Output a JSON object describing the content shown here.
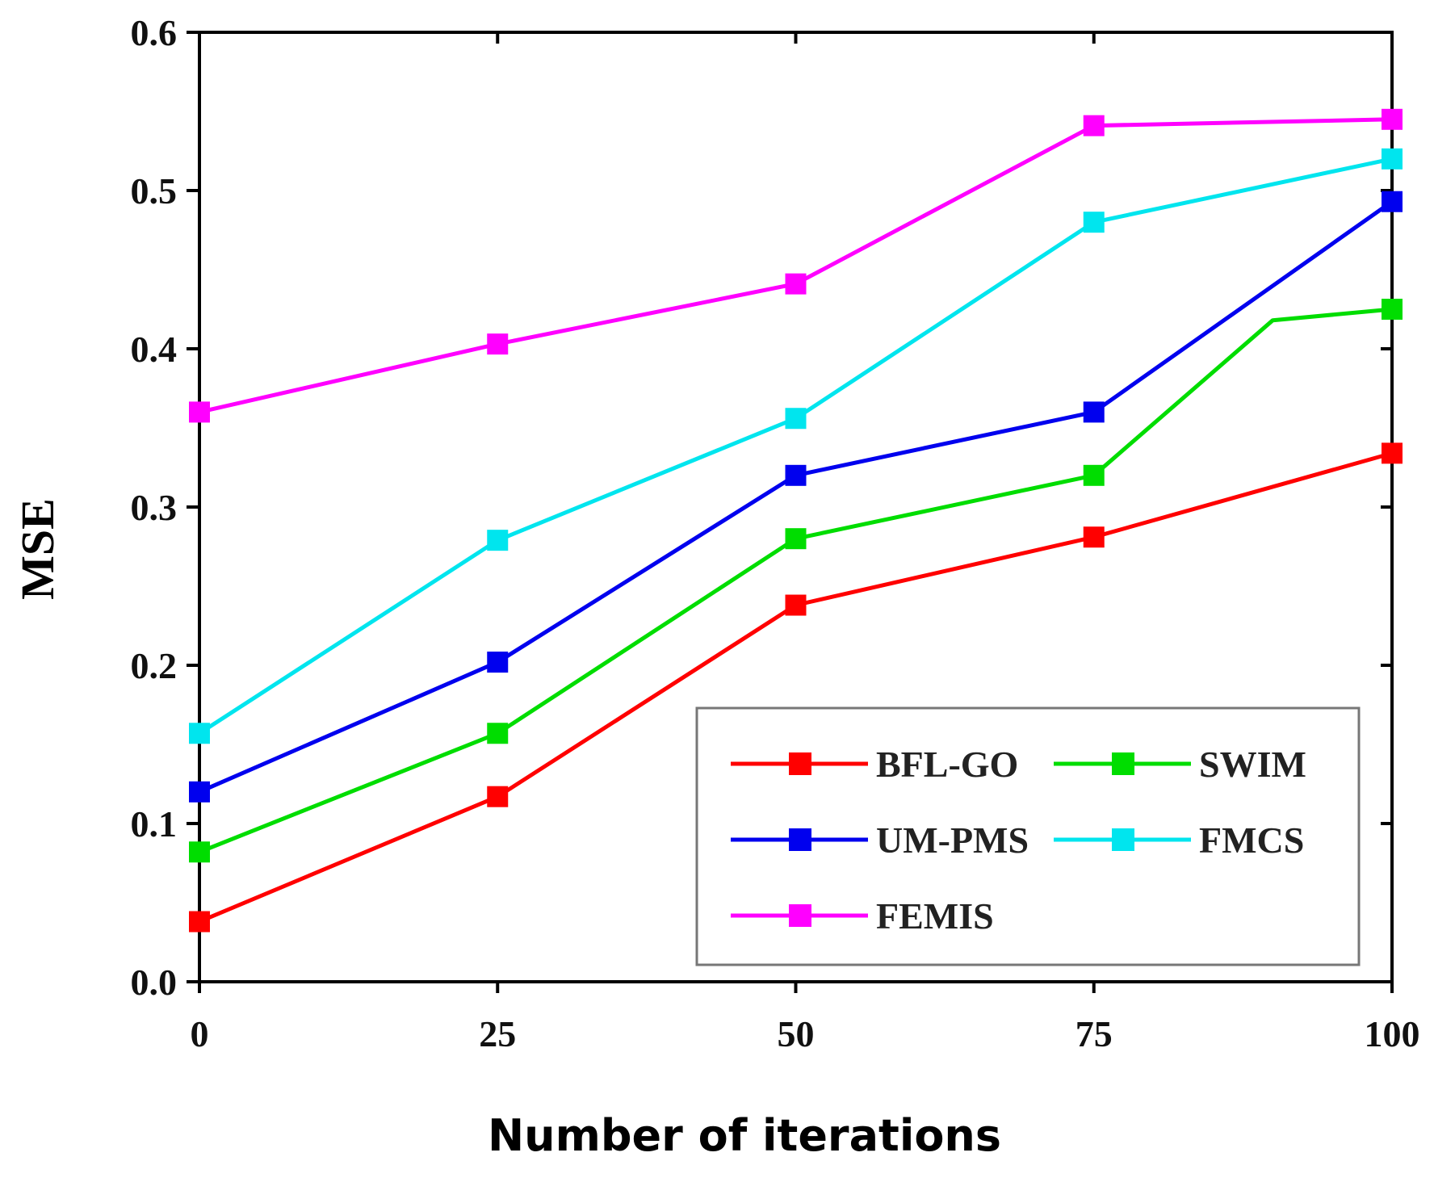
{
  "chart_data": {
    "type": "line",
    "title": "",
    "xlabel": "Number  of iterations",
    "ylabel": "MSE",
    "x": [
      0,
      25,
      50,
      75,
      100
    ],
    "x_ticks": [
      "0",
      "25",
      "50",
      "75",
      "100"
    ],
    "y_ticks": [
      "0.0",
      "0.1",
      "0.2",
      "0.3",
      "0.4",
      "0.5",
      "0.6"
    ],
    "xlim": [
      0,
      100
    ],
    "ylim": [
      0,
      0.6
    ],
    "grid": false,
    "legend_position": "bottom-right",
    "series": [
      {
        "name": "BFL-GO",
        "color": "#ff0000",
        "x": [
          0,
          25,
          50,
          75,
          100
        ],
        "values": [
          0.038,
          0.117,
          0.238,
          0.281,
          0.334
        ]
      },
      {
        "name": "SWIM",
        "color": "#00dd00",
        "x": [
          0,
          25,
          50,
          75,
          90,
          100
        ],
        "values": [
          0.082,
          0.157,
          0.28,
          0.32,
          0.418,
          0.425
        ]
      },
      {
        "name": "UM-PMS",
        "color": "#0000ee",
        "x": [
          0,
          25,
          50,
          75,
          100
        ],
        "values": [
          0.12,
          0.202,
          0.32,
          0.36,
          0.493
        ]
      },
      {
        "name": "FMCS",
        "color": "#00e5ee",
        "x": [
          0,
          25,
          50,
          75,
          100
        ],
        "values": [
          0.157,
          0.279,
          0.356,
          0.48,
          0.52
        ]
      },
      {
        "name": "FEMIS",
        "color": "#ff00ff",
        "x": [
          0,
          25,
          50,
          75,
          100
        ],
        "values": [
          0.36,
          0.403,
          0.441,
          0.541,
          0.545
        ]
      }
    ]
  }
}
